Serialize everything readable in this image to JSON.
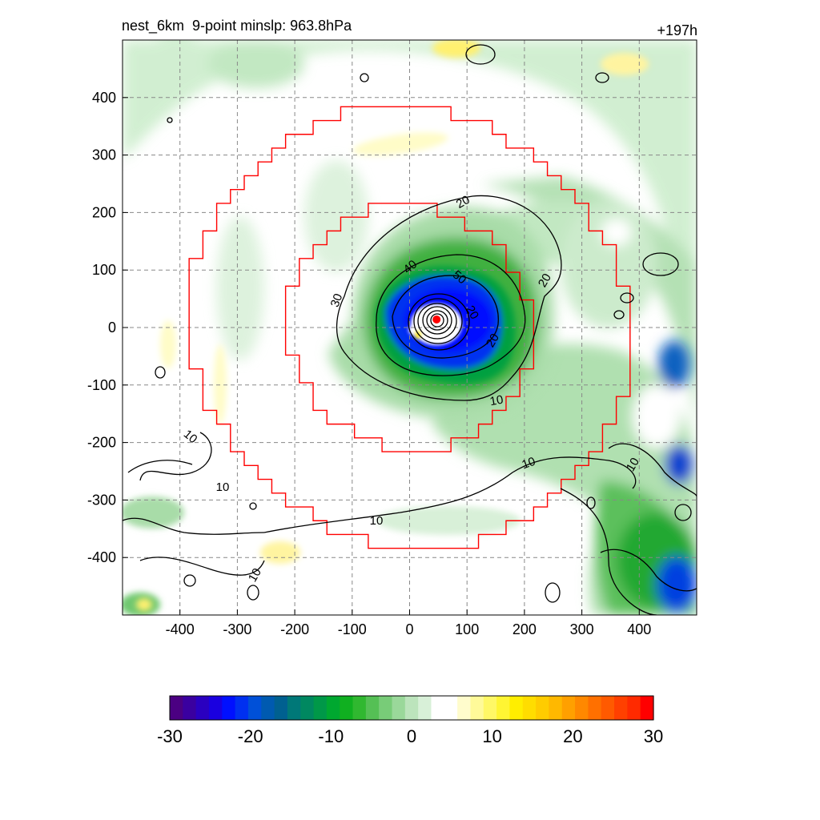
{
  "chart_data": {
    "type": "heatmap",
    "title_left": "nest_6km  9-point minslp: 963.8hPa",
    "title_right": "+197h",
    "xlabel": "",
    "ylabel": "",
    "xlim": [
      -500,
      500
    ],
    "ylim": [
      -500,
      500
    ],
    "x_ticks": [
      -400,
      -300,
      -200,
      -100,
      0,
      100,
      200,
      300,
      400
    ],
    "y_ticks": [
      400,
      300,
      200,
      100,
      0,
      -100,
      -200,
      -300,
      -400
    ],
    "grid": true,
    "colorbar": {
      "min": -30,
      "max": 30,
      "ticks": [
        -30,
        -20,
        -10,
        0,
        10,
        20,
        30
      ],
      "colors": [
        "#4b0082",
        "#3a00a0",
        "#2a00c0",
        "#1a00e0",
        "#0010ff",
        "#0030f0",
        "#0050d8",
        "#005ab0",
        "#006090",
        "#007878",
        "#008860",
        "#009848",
        "#00a830",
        "#10b020",
        "#30b830",
        "#55c055",
        "#78cc78",
        "#9ad89a",
        "#bce4bc",
        "#d8f0d8",
        "#ffffff",
        "#ffffff",
        "#fffccc",
        "#fffa99",
        "#fff866",
        "#fff533",
        "#ffee00",
        "#ffdd00",
        "#ffcc00",
        "#ffb800",
        "#ffa000",
        "#ff8800",
        "#ff7000",
        "#ff5a00",
        "#ff4000",
        "#ff2a00",
        "#ff0000"
      ]
    },
    "contour_labels": [
      "20",
      "30",
      "40",
      "50",
      "20",
      "20",
      "20",
      "10",
      "10",
      "10",
      "10",
      "10",
      "10",
      "10"
    ],
    "storm_center": {
      "x": 47,
      "y": 14
    },
    "nest_boxes": [
      {
        "name": "outer",
        "radius": 380,
        "color": "#ff0000"
      },
      {
        "name": "inner",
        "radius": 210,
        "color": "#ff0000"
      }
    ]
  }
}
